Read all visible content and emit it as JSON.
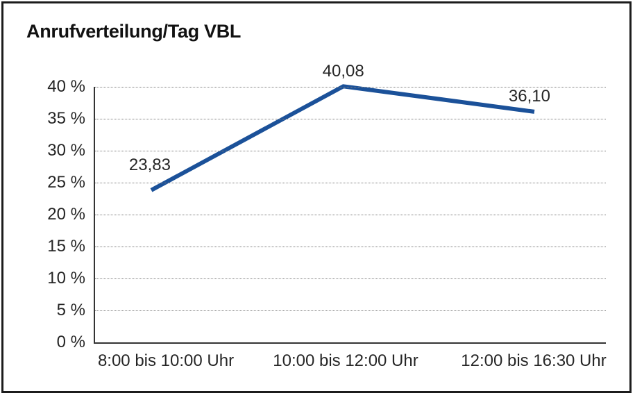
{
  "chart_data": {
    "type": "line",
    "title": "Anrufverteilung/Tag VBL",
    "categories": [
      "8:00 bis 10:00 Uhr",
      "10:00 bis 12:00 Uhr",
      "12:00 bis 16:30 Uhr"
    ],
    "values": [
      23.83,
      40.08,
      36.1
    ],
    "point_labels": [
      "23,83",
      "40,08",
      "36,10"
    ],
    "y_ticks": [
      {
        "value": 0,
        "label": "0 %"
      },
      {
        "value": 5,
        "label": "5 %"
      },
      {
        "value": 10,
        "label": "10 %"
      },
      {
        "value": 15,
        "label": "15 %"
      },
      {
        "value": 20,
        "label": "20 %"
      },
      {
        "value": 25,
        "label": "25 %"
      },
      {
        "value": 30,
        "label": "30 %"
      },
      {
        "value": 35,
        "label": "35 %"
      },
      {
        "value": 40,
        "label": "40 %"
      }
    ],
    "ylim": [
      0,
      40
    ],
    "xlabel": "",
    "ylabel": "",
    "grid": "horizontal-dotted",
    "legend": "none",
    "colors": {
      "line": "#1b5199",
      "text": "#262626",
      "title": "#111111",
      "grid": "#7f7f7f",
      "axis": "#333333",
      "frame": "#1c1c1c",
      "background": "#ffffff"
    }
  }
}
